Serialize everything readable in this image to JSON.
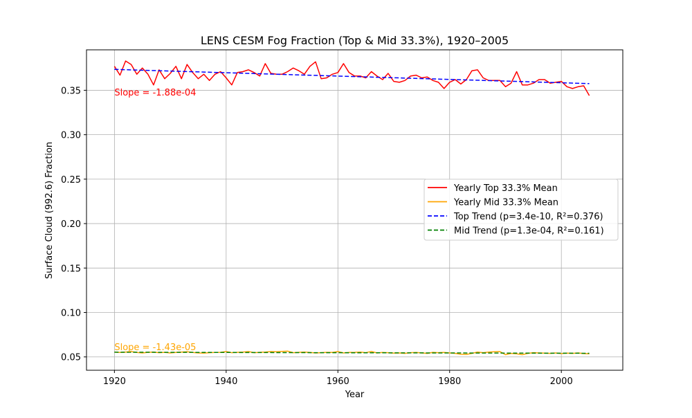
{
  "chart_data": {
    "type": "line",
    "title": "LENS CESM Fog Fraction (Top & Mid 33.3%), 1920–2005",
    "xlabel": "Year",
    "ylabel": "Surface Cloud (992.6) Fraction",
    "xlim": [
      1915,
      2011
    ],
    "ylim": [
      0.035,
      0.3955
    ],
    "xticks": [
      1920,
      1940,
      1960,
      1980,
      2000
    ],
    "yticks": [
      0.05,
      0.1,
      0.15,
      0.2,
      0.25,
      0.3,
      0.35
    ],
    "ytick_labels": [
      "0.05",
      "0.10",
      "0.15",
      "0.20",
      "0.25",
      "0.30",
      "0.35"
    ],
    "grid": true,
    "legend_position": "center-right",
    "x": [
      1920,
      1921,
      1922,
      1923,
      1924,
      1925,
      1926,
      1927,
      1928,
      1929,
      1930,
      1931,
      1932,
      1933,
      1934,
      1935,
      1936,
      1937,
      1938,
      1939,
      1940,
      1941,
      1942,
      1943,
      1944,
      1945,
      1946,
      1947,
      1948,
      1949,
      1950,
      1951,
      1952,
      1953,
      1954,
      1955,
      1956,
      1957,
      1958,
      1959,
      1960,
      1961,
      1962,
      1963,
      1964,
      1965,
      1966,
      1967,
      1968,
      1969,
      1970,
      1971,
      1972,
      1973,
      1974,
      1975,
      1976,
      1977,
      1978,
      1979,
      1980,
      1981,
      1982,
      1983,
      1984,
      1985,
      1986,
      1987,
      1988,
      1989,
      1990,
      1991,
      1992,
      1993,
      1994,
      1995,
      1996,
      1997,
      1998,
      1999,
      2000,
      2001,
      2002,
      2003,
      2004,
      2005
    ],
    "series": [
      {
        "name": "Yearly Top 33.3% Mean",
        "color": "#ff0000",
        "style": "solid",
        "values": [
          0.377,
          0.367,
          0.383,
          0.379,
          0.368,
          0.375,
          0.368,
          0.356,
          0.373,
          0.363,
          0.369,
          0.377,
          0.363,
          0.379,
          0.37,
          0.363,
          0.368,
          0.361,
          0.368,
          0.371,
          0.364,
          0.356,
          0.37,
          0.371,
          0.373,
          0.37,
          0.366,
          0.38,
          0.369,
          0.368,
          0.368,
          0.371,
          0.375,
          0.372,
          0.368,
          0.377,
          0.382,
          0.363,
          0.364,
          0.368,
          0.37,
          0.38,
          0.37,
          0.366,
          0.366,
          0.364,
          0.371,
          0.366,
          0.362,
          0.369,
          0.36,
          0.359,
          0.361,
          0.366,
          0.367,
          0.364,
          0.365,
          0.361,
          0.359,
          0.352,
          0.359,
          0.362,
          0.357,
          0.362,
          0.372,
          0.373,
          0.364,
          0.361,
          0.361,
          0.361,
          0.354,
          0.358,
          0.371,
          0.356,
          0.356,
          0.358,
          0.362,
          0.362,
          0.358,
          0.359,
          0.36,
          0.354,
          0.352,
          0.354,
          0.355,
          0.344
        ]
      },
      {
        "name": "Yearly Mid 33.3% Mean",
        "color": "#ffa500",
        "style": "solid",
        "values": [
          0.0555,
          0.055,
          0.0555,
          0.056,
          0.055,
          0.0545,
          0.0552,
          0.0555,
          0.0548,
          0.0552,
          0.0545,
          0.055,
          0.0555,
          0.0558,
          0.055,
          0.0545,
          0.0542,
          0.0548,
          0.055,
          0.0552,
          0.056,
          0.0548,
          0.0552,
          0.0555,
          0.056,
          0.0548,
          0.0552,
          0.0555,
          0.056,
          0.0558,
          0.0562,
          0.0565,
          0.0548,
          0.0552,
          0.0555,
          0.055,
          0.0545,
          0.0548,
          0.0552,
          0.055,
          0.056,
          0.0545,
          0.055,
          0.0552,
          0.0555,
          0.0548,
          0.0562,
          0.0545,
          0.055,
          0.0548,
          0.0542,
          0.0545,
          0.054,
          0.0548,
          0.055,
          0.0545,
          0.054,
          0.0552,
          0.0548,
          0.055,
          0.0545,
          0.054,
          0.053,
          0.0528,
          0.054,
          0.0555,
          0.0548,
          0.0555,
          0.0558,
          0.056,
          0.0525,
          0.054,
          0.0535,
          0.0525,
          0.054,
          0.0548,
          0.0545,
          0.0542,
          0.054,
          0.0545,
          0.0538,
          0.0542,
          0.054,
          0.0545,
          0.0538,
          0.0535
        ]
      },
      {
        "name": "Top Trend (p=3.4e-10, R²=0.376)",
        "color": "#0000ff",
        "style": "dashed",
        "start": [
          1920,
          0.3735
        ],
        "end": [
          2005,
          0.3575
        ]
      },
      {
        "name": "Mid Trend (p=1.3e-04, R²=0.161)",
        "color": "#008000",
        "style": "dashed",
        "start": [
          1920,
          0.0553
        ],
        "end": [
          2005,
          0.0541
        ]
      }
    ],
    "annotations": [
      {
        "text": "Slope = -1.88e-04",
        "x": 1920,
        "y": 0.344,
        "color": "#ff0000"
      },
      {
        "text": "Slope = -1.43e-05",
        "x": 1920,
        "y": 0.0575,
        "color": "#ffa500"
      }
    ]
  }
}
